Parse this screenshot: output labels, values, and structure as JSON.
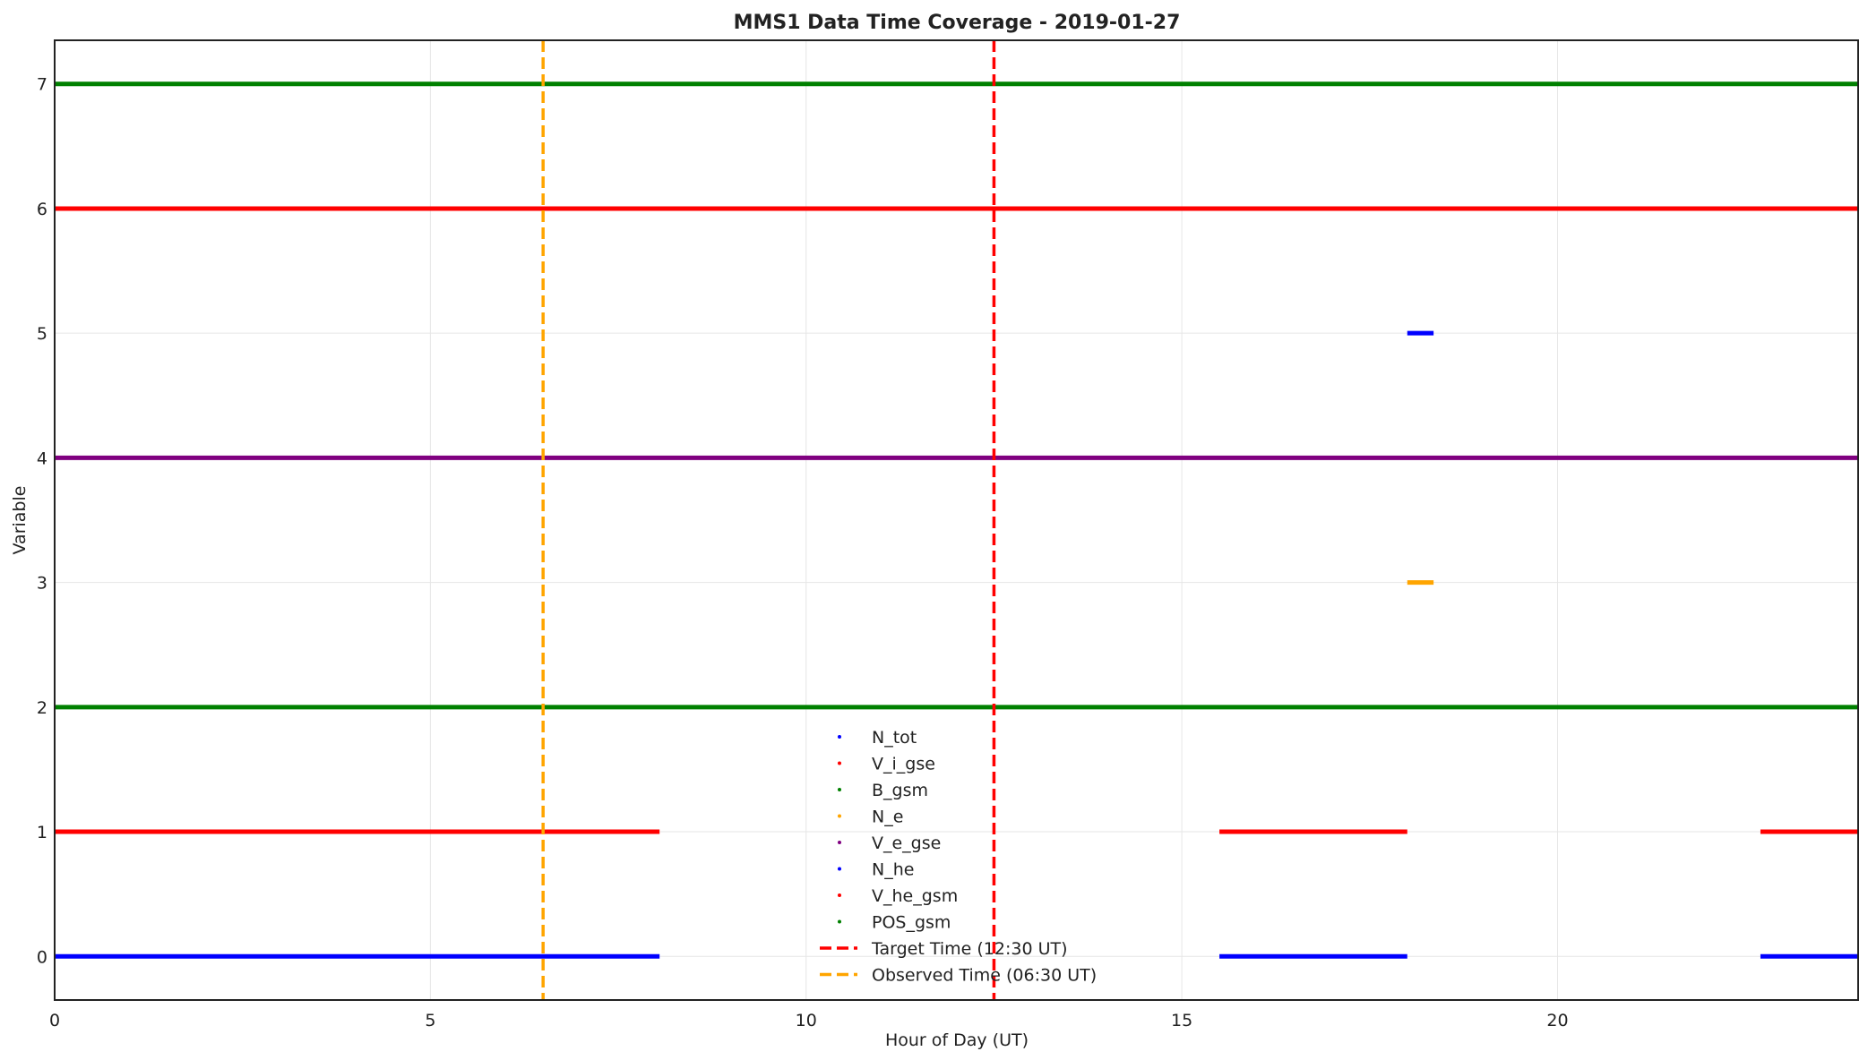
{
  "chart_data": {
    "type": "scatter",
    "title": "MMS1 Data Time Coverage - 2019-01-27",
    "xlabel": "Hour of Day (UT)",
    "ylabel": "Variable",
    "xlim": [
      0,
      24
    ],
    "ylim": [
      -0.35,
      7.35
    ],
    "xticks": [
      0,
      5,
      10,
      15,
      20
    ],
    "yticks": [
      0,
      1,
      2,
      3,
      4,
      5,
      6,
      7
    ],
    "grid": true,
    "legend_position": "bottom-center",
    "series": [
      {
        "name": "N_tot",
        "y": 0,
        "color": "#0000ff",
        "intervals": [
          [
            0,
            8.05
          ],
          [
            15.5,
            18.0
          ],
          [
            22.7,
            24
          ]
        ]
      },
      {
        "name": "V_i_gse",
        "y": 1,
        "color": "#ff0000",
        "intervals": [
          [
            0,
            8.05
          ],
          [
            15.5,
            18.0
          ],
          [
            22.7,
            24
          ]
        ]
      },
      {
        "name": "B_gsm",
        "y": 2,
        "color": "#008000",
        "intervals": [
          [
            0,
            24
          ]
        ]
      },
      {
        "name": "N_e",
        "y": 3,
        "color": "#ffa500",
        "intervals": [
          [
            18.0,
            18.35
          ]
        ]
      },
      {
        "name": "V_e_gse",
        "y": 4,
        "color": "#800080",
        "intervals": [
          [
            0,
            24
          ]
        ]
      },
      {
        "name": "N_he",
        "y": 5,
        "color": "#0000ff",
        "intervals": [
          [
            18.0,
            18.35
          ]
        ]
      },
      {
        "name": "V_he_gsm",
        "y": 6,
        "color": "#ff0000",
        "intervals": [
          [
            0,
            24
          ]
        ]
      },
      {
        "name": "POS_gsm",
        "y": 7,
        "color": "#008000",
        "intervals": [
          [
            0,
            24
          ]
        ]
      }
    ],
    "reference_lines": [
      {
        "name": "Target Time (12:30 UT)",
        "x": 12.5,
        "color": "#ff0000",
        "style": "dashed"
      },
      {
        "name": "Observed Time (06:30 UT)",
        "x": 6.5,
        "color": "#ffa500",
        "style": "dashed"
      }
    ]
  }
}
